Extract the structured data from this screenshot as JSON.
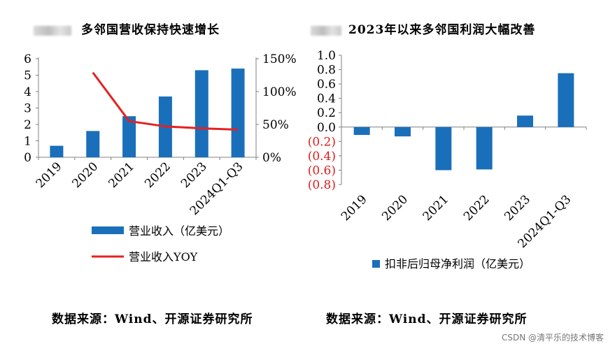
{
  "chart_data": [
    {
      "type": "bar",
      "title": "多邻国营收保持快速增长",
      "categories": [
        "2019",
        "2020",
        "2021",
        "2022",
        "2023",
        "2024Q1-Q3"
      ],
      "series": [
        {
          "name": "营业收入（亿美元）",
          "type": "bar",
          "axis": "left",
          "color": "#1a6fba",
          "values": [
            0.7,
            1.6,
            2.5,
            3.7,
            5.3,
            5.4
          ]
        },
        {
          "name": "营业收入YOY",
          "type": "line",
          "axis": "right",
          "color": "#e52121",
          "values": [
            null,
            129,
            55,
            47,
            44,
            42
          ]
        }
      ],
      "ylim_left": [
        0,
        6
      ],
      "yticks_left": [
        "0",
        "1",
        "2",
        "3",
        "4",
        "5",
        "6"
      ],
      "ylim_right": [
        0,
        150
      ],
      "yticks_right": [
        "0%",
        "50%",
        "100%",
        "150%"
      ],
      "legend_position": "bottom",
      "source": "数据来源：Wind、开源证券研究所"
    },
    {
      "type": "bar",
      "title": "2023年以来多邻国利润大幅改善",
      "categories": [
        "2019",
        "2020",
        "2021",
        "2022",
        "2023",
        "2024Q1-Q3"
      ],
      "series": [
        {
          "name": "扣非后归母净利润（亿美元）",
          "color": "#1a6fba",
          "values": [
            -0.11,
            -0.13,
            -0.6,
            -0.59,
            0.16,
            0.75
          ]
        }
      ],
      "ylim": [
        -0.8,
        1.0
      ],
      "yticks": [
        "(0.8)",
        "(0.6)",
        "(0.4)",
        "(0.2)",
        "0.0",
        "0.2",
        "0.4",
        "0.6",
        "0.8",
        "1.0"
      ],
      "negative_tick_color": "#e01b1b",
      "legend_position": "bottom",
      "source": "数据来源：Wind、开源证券研究所"
    }
  ],
  "watermark": "CSDN @清平乐的技术博客"
}
